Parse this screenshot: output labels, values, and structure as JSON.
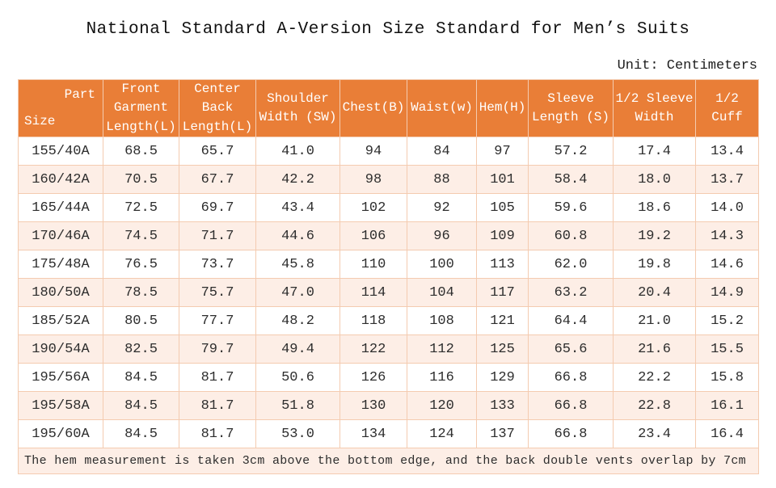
{
  "title": "National Standard A-Version Size Standard for Men’s Suits",
  "unit_label": "Unit: Centimeters",
  "table": {
    "corner": {
      "part": "Part",
      "size": "Size"
    },
    "headers": [
      "Front\nGarment\nLength(L)",
      "Center\nBack\nLength(L)",
      "Shoulder\nWidth (SW)",
      "Chest(B)",
      "Waist(w)",
      "Hem(H)",
      "Sleeve\nLength (S)",
      "1/2 Sleeve\nWidth",
      "1/2\nCuff"
    ],
    "rows": [
      [
        "155/40A",
        "68.5",
        "65.7",
        "41.0",
        "94",
        "84",
        "97",
        "57.2",
        "17.4",
        "13.4"
      ],
      [
        "160/42A",
        "70.5",
        "67.7",
        "42.2",
        "98",
        "88",
        "101",
        "58.4",
        "18.0",
        "13.7"
      ],
      [
        "165/44A",
        "72.5",
        "69.7",
        "43.4",
        "102",
        "92",
        "105",
        "59.6",
        "18.6",
        "14.0"
      ],
      [
        "170/46A",
        "74.5",
        "71.7",
        "44.6",
        "106",
        "96",
        "109",
        "60.8",
        "19.2",
        "14.3"
      ],
      [
        "175/48A",
        "76.5",
        "73.7",
        "45.8",
        "110",
        "100",
        "113",
        "62.0",
        "19.8",
        "14.6"
      ],
      [
        "180/50A",
        "78.5",
        "75.7",
        "47.0",
        "114",
        "104",
        "117",
        "63.2",
        "20.4",
        "14.9"
      ],
      [
        "185/52A",
        "80.5",
        "77.7",
        "48.2",
        "118",
        "108",
        "121",
        "64.4",
        "21.0",
        "15.2"
      ],
      [
        "190/54A",
        "82.5",
        "79.7",
        "49.4",
        "122",
        "112",
        "125",
        "65.6",
        "21.6",
        "15.5"
      ],
      [
        "195/56A",
        "84.5",
        "81.7",
        "50.6",
        "126",
        "116",
        "129",
        "66.8",
        "22.2",
        "15.8"
      ],
      [
        "195/58A",
        "84.5",
        "81.7",
        "51.8",
        "130",
        "120",
        "133",
        "66.8",
        "22.8",
        "16.1"
      ],
      [
        "195/60A",
        "84.5",
        "81.7",
        "53.0",
        "134",
        "124",
        "137",
        "66.8",
        "23.4",
        "16.4"
      ]
    ],
    "footnote": "The hem measurement is taken 3cm above the bottom edge, and the back double vents overlap by 7cm"
  },
  "colors": {
    "header_bg": "#e97e37",
    "header_text": "#ffffff",
    "alt_row_bg": "#fdeee6",
    "border": "#f4cbb0",
    "body_text": "#2d2d2d"
  }
}
